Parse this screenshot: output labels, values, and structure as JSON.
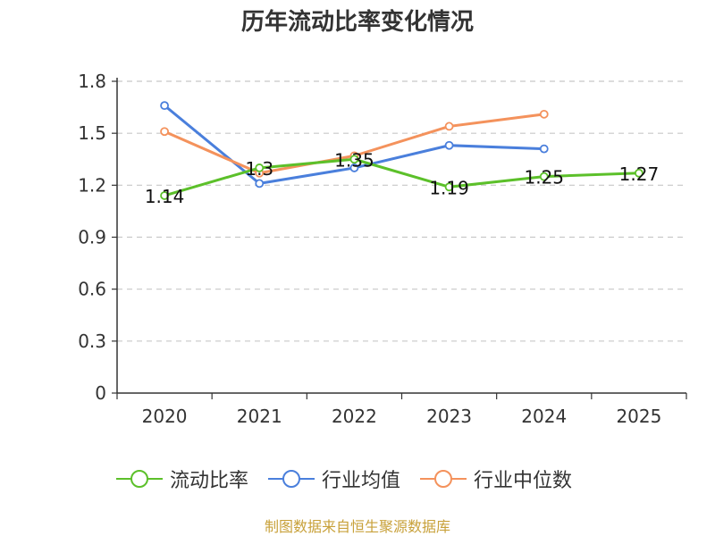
{
  "title": "历年流动比率变化情况",
  "footer": "制图数据来自恒生聚源数据库",
  "colors": {
    "grid": "#c8c8c8",
    "axis": "#333333",
    "text": "#333333"
  },
  "chart_data": {
    "type": "line",
    "categories": [
      "2020",
      "2021",
      "2022",
      "2023",
      "2024",
      "2025"
    ],
    "ylim": [
      0,
      1.8
    ],
    "yticks": [
      "0",
      "0.3",
      "0.6",
      "0.9",
      "1.2",
      "1.5",
      "1.8"
    ],
    "xlabel": "",
    "ylabel": "",
    "grid": true,
    "legend_position": "bottom",
    "series": [
      {
        "name": "流动比率",
        "color": "#5cc02a",
        "values": [
          1.14,
          1.3,
          1.35,
          1.19,
          1.25,
          1.27
        ],
        "labels": [
          "1.14",
          "1.3",
          "1.35",
          "1.19",
          "1.25",
          "1.27"
        ]
      },
      {
        "name": "行业均值",
        "color": "#4a7fdc",
        "values": [
          1.66,
          1.21,
          1.3,
          1.43,
          1.41,
          null
        ]
      },
      {
        "name": "行业中位数",
        "color": "#f4925c",
        "values": [
          1.51,
          1.27,
          1.37,
          1.54,
          1.61,
          null
        ]
      }
    ]
  }
}
